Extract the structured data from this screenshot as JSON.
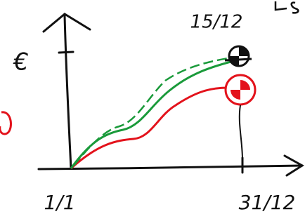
{
  "y_axis_label": "€",
  "marker_label": "15/12",
  "x_start_label": "1/1",
  "x_end_label": "31/12"
}
